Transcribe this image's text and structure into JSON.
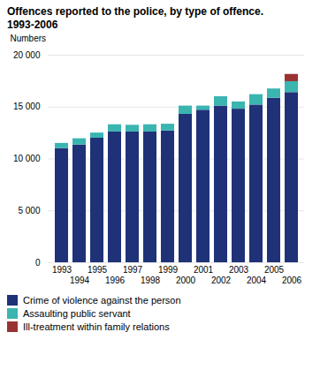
{
  "chart_data": {
    "type": "bar",
    "stacked": true,
    "title": "Offences reported to the police, by type of offence.",
    "subtitle": "1993-2006",
    "y_label": "Numbers",
    "categories": [
      "1993",
      "1994",
      "1995",
      "1996",
      "1997",
      "1998",
      "1999",
      "2000",
      "2001",
      "2002",
      "2003",
      "2004",
      "2005",
      "2006"
    ],
    "series": [
      {
        "name": "Crime of violence against the person",
        "color": "#1f3278",
        "values": [
          11000,
          11350,
          12000,
          12600,
          12600,
          12600,
          12700,
          14300,
          14700,
          15100,
          14800,
          15200,
          15850,
          16400
        ]
      },
      {
        "name": "Assaulting public servant",
        "color": "#3ab5b0",
        "values": [
          500,
          600,
          500,
          700,
          650,
          700,
          650,
          800,
          400,
          900,
          700,
          1000,
          900,
          1050
        ]
      },
      {
        "name": "Ill-treatment within family relations",
        "color": "#993333",
        "values": [
          0,
          0,
          0,
          0,
          0,
          0,
          0,
          0,
          0,
          0,
          0,
          0,
          0,
          700
        ]
      }
    ],
    "ylim": [
      0,
      20000
    ],
    "yticks": [
      0,
      {
        "value": 5000,
        "label": "5 000"
      },
      {
        "value": 10000,
        "label": "10 000"
      },
      {
        "value": 15000,
        "label": "15 000"
      },
      {
        "value": 20000,
        "label": "20 000"
      }
    ],
    "grid": true,
    "legend": "bottom"
  }
}
